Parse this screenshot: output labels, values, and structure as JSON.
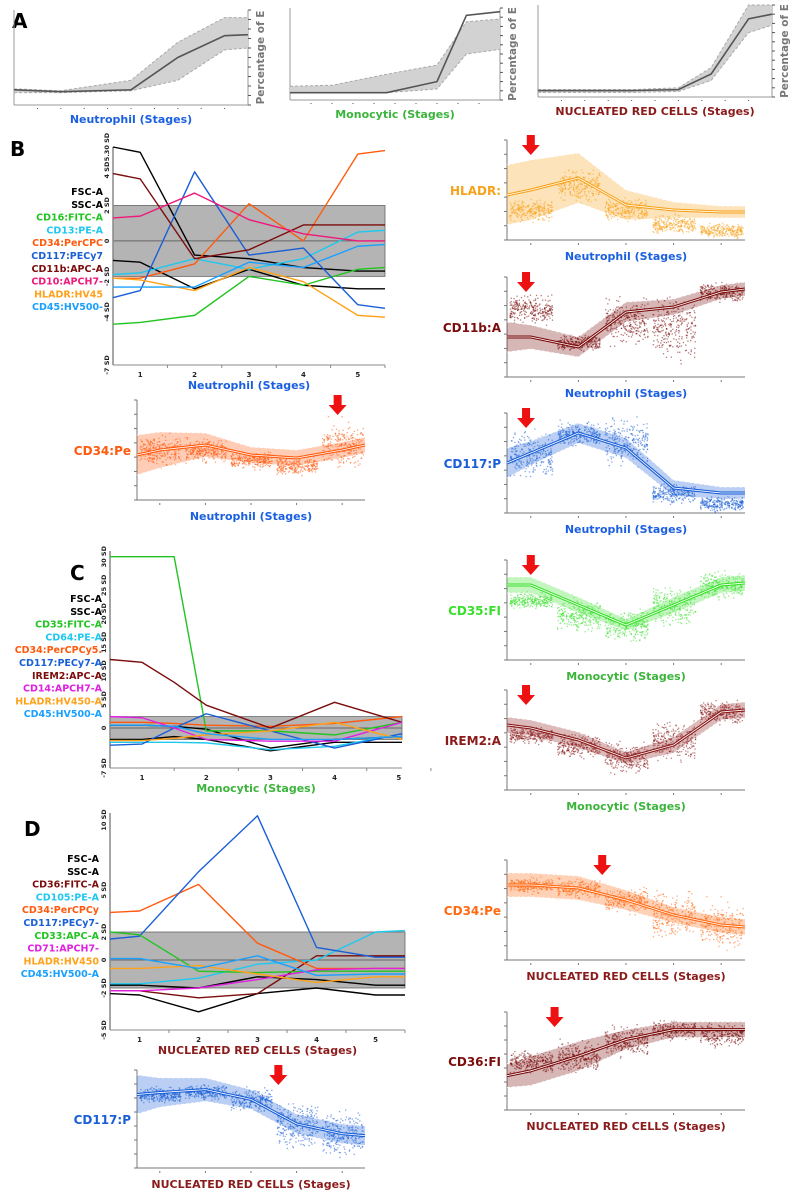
{
  "panel_letters": [
    "A",
    "B",
    "C",
    "D"
  ],
  "chart_data": [
    {
      "id": "A1",
      "type": "area",
      "panel": "A",
      "xlabel": "Neutrophil (Stages)",
      "ylabel": "Percentage of E",
      "xlabel_color": "#1a5fe0",
      "ylim": [
        0,
        100
      ],
      "xlim": [
        0.5,
        5.5
      ],
      "x": [
        0.5,
        1.5,
        3,
        4,
        5,
        5.5
      ],
      "mean": [
        16,
        14,
        16,
        50,
        73,
        74
      ],
      "lower": [
        13,
        13,
        15,
        26,
        58,
        60
      ],
      "upper": [
        17,
        15,
        26,
        66,
        92,
        92
      ]
    },
    {
      "id": "A2",
      "type": "area",
      "panel": "A",
      "xlabel": "Monocytic (Stages)",
      "ylabel": "Percentage of E",
      "xlabel_color": "#3cb43c",
      "ylim": [
        0,
        100
      ],
      "xlim": [
        0.5,
        5.5
      ],
      "x": [
        0.5,
        1.5,
        2.8,
        4,
        4.7,
        5.5
      ],
      "mean": [
        8,
        8,
        8,
        20,
        92,
        96
      ],
      "lower": [
        8,
        8,
        8,
        12,
        50,
        55
      ],
      "upper": [
        15,
        16,
        28,
        38,
        85,
        88
      ]
    },
    {
      "id": "A3",
      "type": "area",
      "panel": "A",
      "xlabel": "NUCLEATED RED CELLS (Stages)",
      "ylabel": "Percentage of E",
      "xlabel_color": "#8b1a1a",
      "ylim": [
        0,
        100
      ],
      "xlim": [
        0.5,
        5.5
      ],
      "x": [
        0.5,
        1.5,
        2.5,
        3.5,
        4.2,
        5,
        5.5
      ],
      "mean": [
        7,
        7,
        7,
        8,
        25,
        85,
        90
      ],
      "lower": [
        5,
        5,
        5,
        6,
        18,
        70,
        78
      ],
      "upper": [
        8,
        8,
        8,
        10,
        32,
        100,
        100
      ]
    },
    {
      "id": "B",
      "type": "line",
      "panel": "B",
      "xlabel": "Neutrophil (Stages)",
      "xlabel_color": "#1a5fe0",
      "ylim": [
        -7,
        5.3
      ],
      "xlim": [
        0.5,
        5.5
      ],
      "band": [
        -2,
        2
      ],
      "yticks": [
        {
          "v": 5.3,
          "label": "5.30 SD"
        },
        {
          "v": 4,
          "label": "4 SD"
        },
        {
          "v": 2,
          "label": "2 SD"
        },
        {
          "v": 0,
          "label": "0"
        },
        {
          "v": -2,
          "label": "-2 SD"
        },
        {
          "v": -4,
          "label": "-4 SD"
        },
        {
          "v": -7,
          "label": "-7 SD"
        }
      ],
      "xticks": [
        "1",
        "2",
        "3",
        "4",
        "5"
      ],
      "x": [
        0.5,
        1,
        2,
        3,
        4,
        5,
        5.5
      ],
      "series": [
        {
          "name": "FSC-A",
          "color": "#000000",
          "y": [
            5.3,
            5.0,
            -0.8,
            -1.0,
            -1.5,
            -1.7,
            -1.7
          ]
        },
        {
          "name": "SSC-A",
          "color": "#000000",
          "y": [
            -1.1,
            -1.2,
            -2.7,
            -1.6,
            -2.5,
            -2.7,
            -2.7
          ]
        },
        {
          "name": "CD16:FITC-A",
          "color": "#22c422",
          "y": [
            -4.7,
            -4.6,
            -4.2,
            -2.0,
            -2.5,
            -1.6,
            -1.5
          ]
        },
        {
          "name": "CD13:PE-A",
          "color": "#1ec8f0",
          "y": [
            -1.9,
            -1.8,
            -1.0,
            -1.6,
            -1.0,
            0.5,
            0.6
          ]
        },
        {
          "name": "CD34:PerCPC",
          "color": "#ff5a0e",
          "y": [
            -2.1,
            -2.1,
            -1.3,
            2.1,
            0.0,
            4.9,
            5.1
          ]
        },
        {
          "name": "CD117:PECy7",
          "color": "#1a5fd6",
          "y": [
            -3.2,
            -2.8,
            3.9,
            -0.8,
            -0.4,
            -3.6,
            -3.8
          ]
        },
        {
          "name": "CD11b:APC-A",
          "color": "#7b0c0c",
          "y": [
            3.8,
            3.5,
            -1.0,
            -0.5,
            0.9,
            0.9,
            0.9
          ]
        },
        {
          "name": "CD10:APCH7-",
          "color": "#f0187a",
          "y": [
            1.3,
            1.4,
            2.7,
            1.2,
            0.4,
            0.0,
            0.0
          ]
        },
        {
          "name": "HLADR:HV45",
          "color": "#ffa21a",
          "y": [
            -2.1,
            -2.2,
            -2.8,
            -1.5,
            -2.3,
            -4.2,
            -4.3
          ]
        },
        {
          "name": "CD45:HV500-",
          "color": "#1aa0ff",
          "y": [
            -2.6,
            -2.6,
            -2.6,
            -1.2,
            -1.5,
            -0.3,
            -0.2
          ]
        }
      ]
    },
    {
      "id": "C",
      "type": "line",
      "panel": "C",
      "xlabel": "Monocytic (Stages)",
      "xlabel_color": "#3cb43c",
      "ylim": [
        -7,
        31
      ],
      "xlim": [
        0.5,
        5.05
      ],
      "band": [
        -2,
        2
      ],
      "yticks": [
        {
          "v": 30,
          "label": "30 SD"
        },
        {
          "v": 25,
          "label": "25 SD"
        },
        {
          "v": 20,
          "label": "20 SD"
        },
        {
          "v": 15,
          "label": "15 SD"
        },
        {
          "v": 10,
          "label": "10 SD"
        },
        {
          "v": 5,
          "label": "5 SD"
        },
        {
          "v": 0,
          "label": "0"
        },
        {
          "v": -7,
          "label": "-7 SD"
        }
      ],
      "xticks": [
        "1",
        "2",
        "3",
        "4",
        "5"
      ],
      "x": [
        0.5,
        1,
        1.5,
        2,
        3,
        4,
        5.05
      ],
      "series": [
        {
          "name": "FSC-A",
          "color": "#000000",
          "y": [
            -2,
            -2,
            -1.5,
            -2,
            -4,
            -2.5,
            -2.5
          ]
        },
        {
          "name": "SSC-A",
          "color": "#000000",
          "y": [
            0.5,
            0.5,
            0.3,
            -0.2,
            -3.5,
            -2,
            -1.5
          ]
        },
        {
          "name": "CD35:FITC-A",
          "color": "#22c422",
          "y": [
            30,
            30,
            30,
            -0.5,
            -0.5,
            -1.2,
            1.0
          ]
        },
        {
          "name": "CD64:PE-A",
          "color": "#1ec8f0",
          "y": [
            -2.5,
            -2.5,
            -2.5,
            -2.6,
            -3.8,
            -3.2,
            -1.0
          ]
        },
        {
          "name": "CD34:PerCPCy5.",
          "color": "#ff5a0e",
          "y": [
            1.0,
            1.0,
            0.8,
            0.5,
            0.3,
            0.8,
            2.0
          ]
        },
        {
          "name": "CD117:PECy7-A",
          "color": "#1a5fd6",
          "y": [
            -3.0,
            -2.8,
            0.0,
            2.5,
            -0.5,
            -3.5,
            -1.0
          ]
        },
        {
          "name": "IREM2:APC-A",
          "color": "#7b0c0c",
          "y": [
            12,
            11.5,
            8,
            4,
            0,
            4.5,
            1.0
          ]
        },
        {
          "name": "CD14:APCH7-A",
          "color": "#e020e0",
          "y": [
            2,
            1.8,
            0,
            -2,
            -2.3,
            -2.3,
            1.0
          ]
        },
        {
          "name": "HLADR:HV450-A",
          "color": "#ffa21a",
          "y": [
            -2.2,
            -2.2,
            -1.8,
            -1.2,
            -0.5,
            1.0,
            -2.0
          ]
        },
        {
          "name": "CD45:HV500-A",
          "color": "#1aa0ff",
          "y": [
            0.5,
            0.5,
            0.3,
            -1.0,
            -2.0,
            -2.0,
            -1.5
          ]
        }
      ]
    },
    {
      "id": "D",
      "type": "line",
      "panel": "D",
      "xlabel": "NUCLEATED RED CELLS (Stages)",
      "xlabel_color": "#8b1a1a",
      "ylim": [
        -5,
        10.5
      ],
      "xlim": [
        0.5,
        5.5
      ],
      "band": [
        -2,
        2
      ],
      "yticks": [
        {
          "v": 10,
          "label": "10 SD"
        },
        {
          "v": 5,
          "label": "5 SD"
        },
        {
          "v": 2,
          "label": "2 SD"
        },
        {
          "v": 0,
          "label": "0"
        },
        {
          "v": -2,
          "label": "-2 SD"
        },
        {
          "v": -5,
          "label": "-5 SD"
        }
      ],
      "xticks": [
        "1",
        "2",
        "3",
        "4",
        "5"
      ],
      "x": [
        0.5,
        1,
        2,
        3,
        4,
        5,
        5.5
      ],
      "series": [
        {
          "name": "FSC-A",
          "color": "#000000",
          "y": [
            -2.4,
            -2.5,
            -3.7,
            -2.4,
            -2.0,
            -2.5,
            -2.5
          ]
        },
        {
          "name": "SSC-A",
          "color": "#000000",
          "y": [
            -1.8,
            -1.8,
            -2.0,
            -1.2,
            -1.4,
            -1.8,
            -1.8
          ]
        },
        {
          "name": "CD36:FITC-A",
          "color": "#7b0c0c",
          "y": [
            -2.2,
            -2.2,
            -2.7,
            -2.4,
            0.3,
            0.3,
            0.3
          ]
        },
        {
          "name": "CD105:PE-A",
          "color": "#1ec8f0",
          "y": [
            -1.7,
            -1.7,
            -1.3,
            -0.3,
            0.0,
            2.0,
            2.1
          ]
        },
        {
          "name": "CD34:PerCPCy",
          "color": "#ff5a0e",
          "y": [
            3.4,
            3.5,
            5.4,
            1.2,
            -0.6,
            -0.6,
            -0.6
          ]
        },
        {
          "name": "CD117:PECy7-",
          "color": "#1a5fd6",
          "y": [
            1.5,
            1.7,
            6.3,
            10.3,
            0.9,
            0.2,
            0.2
          ]
        },
        {
          "name": "CD33:APC-A",
          "color": "#22c422",
          "y": [
            2.0,
            1.8,
            -0.8,
            -0.9,
            -0.8,
            -0.8,
            -0.8
          ]
        },
        {
          "name": "CD71:APCH7-",
          "color": "#e020e0",
          "y": [
            -2.2,
            -2.2,
            -2.0,
            -1.4,
            -0.7,
            -0.6,
            -0.6
          ]
        },
        {
          "name": "HLADR:HV450",
          "color": "#ffa21a",
          "y": [
            -0.6,
            -0.6,
            -0.4,
            -1.0,
            -1.6,
            -1.2,
            -1.2
          ]
        },
        {
          "name": "CD45:HV500-A",
          "color": "#1aa0ff",
          "y": [
            0.1,
            0.1,
            -0.6,
            0.3,
            -1.1,
            -1.0,
            -1.0
          ]
        }
      ]
    },
    {
      "id": "S1",
      "type": "scatter",
      "panel": "B",
      "label": "HLADR:",
      "color": "#f7a21b",
      "xlabel": "Neutrophil (Stages)",
      "xlabel_color": "#1a5fe0",
      "arrow_stage": 1,
      "curve_x": [
        0.5,
        1,
        2,
        3,
        4,
        5,
        5.5
      ],
      "mean": [
        0.45,
        0.5,
        0.62,
        0.35,
        0.3,
        0.28,
        0.28
      ],
      "band": [
        0.3,
        0.3,
        0.25,
        0.15,
        0.08,
        0.06,
        0.06
      ],
      "clusters": [
        [
          0.3,
          0.14
        ],
        [
          0.55,
          0.2
        ],
        [
          0.3,
          0.15
        ],
        [
          0.16,
          0.12
        ],
        [
          0.1,
          0.1
        ]
      ]
    },
    {
      "id": "S2",
      "type": "scatter",
      "panel": "B",
      "label": "CD11b:A",
      "color": "#7b0c0c",
      "xlabel": "Neutrophil (Stages)",
      "xlabel_color": "#1a5fe0",
      "arrow_stage": 0.9,
      "curve_x": [
        0.5,
        1,
        2,
        3,
        4,
        5,
        5.5
      ],
      "mean": [
        0.4,
        0.4,
        0.3,
        0.65,
        0.7,
        0.85,
        0.88
      ],
      "band": [
        0.15,
        0.12,
        0.1,
        0.1,
        0.08,
        0.07,
        0.07
      ],
      "clusters": [
        [
          0.68,
          0.18
        ],
        [
          0.35,
          0.1
        ],
        [
          0.55,
          0.3
        ],
        [
          0.5,
          0.42
        ],
        [
          0.85,
          0.12
        ]
      ]
    },
    {
      "id": "S3",
      "type": "scatter",
      "panel": "B",
      "label": "CD34:Pe",
      "color": "#ff5a0e",
      "xlabel": "Neutrophil (Stages)",
      "xlabel_color": "#1a5fe0",
      "arrow_stage": 4.9,
      "curve_x": [
        0.5,
        1,
        2,
        3,
        4,
        5,
        5.5
      ],
      "mean": [
        0.45,
        0.5,
        0.55,
        0.45,
        0.42,
        0.5,
        0.55
      ],
      "band": [
        0.2,
        0.18,
        0.12,
        0.08,
        0.08,
        0.08,
        0.08
      ],
      "clusters": [
        [
          0.5,
          0.2
        ],
        [
          0.5,
          0.15
        ],
        [
          0.4,
          0.1
        ],
        [
          0.35,
          0.12
        ],
        [
          0.55,
          0.3
        ]
      ]
    },
    {
      "id": "S4",
      "type": "scatter",
      "panel": "B",
      "label": "CD117:P",
      "color": "#1a5fd6",
      "xlabel": "Neutrophil (Stages)",
      "xlabel_color": "#1a5fe0",
      "arrow_stage": 0.9,
      "curve_x": [
        0.5,
        1,
        2,
        3,
        4,
        5,
        5.5
      ],
      "mean": [
        0.5,
        0.6,
        0.8,
        0.65,
        0.25,
        0.2,
        0.2
      ],
      "band": [
        0.15,
        0.12,
        0.1,
        0.1,
        0.08,
        0.06,
        0.06
      ],
      "clusters": [
        [
          0.6,
          0.3
        ],
        [
          0.8,
          0.15
        ],
        [
          0.7,
          0.3
        ],
        [
          0.2,
          0.12
        ],
        [
          0.1,
          0.1
        ]
      ]
    },
    {
      "id": "S5",
      "type": "scatter",
      "panel": "C",
      "label": "CD35:FI",
      "color": "#39e02b",
      "xlabel": "Monocytic (Stages)",
      "xlabel_color": "#3cb43c",
      "arrow_stage": 1,
      "curve_x": [
        0.5,
        1,
        2,
        3,
        4,
        5,
        5.5
      ],
      "mean": [
        0.75,
        0.75,
        0.55,
        0.35,
        0.55,
        0.75,
        0.77
      ],
      "band": [
        0.08,
        0.08,
        0.08,
        0.06,
        0.08,
        0.08,
        0.08
      ],
      "clusters": [
        [
          0.6,
          0.1
        ],
        [
          0.45,
          0.2
        ],
        [
          0.35,
          0.2
        ],
        [
          0.55,
          0.25
        ],
        [
          0.75,
          0.18
        ]
      ]
    },
    {
      "id": "S6",
      "type": "scatter",
      "panel": "C",
      "label": "IREM2:A",
      "color": "#8b1a1a",
      "xlabel": "Monocytic (Stages)",
      "xlabel_color": "#3cb43c",
      "arrow_stage": 0.9,
      "curve_x": [
        0.5,
        1,
        2,
        3,
        4,
        5,
        5.5
      ],
      "mean": [
        0.65,
        0.62,
        0.5,
        0.32,
        0.45,
        0.78,
        0.8
      ],
      "band": [
        0.08,
        0.08,
        0.08,
        0.06,
        0.08,
        0.08,
        0.08
      ],
      "clusters": [
        [
          0.55,
          0.1
        ],
        [
          0.45,
          0.15
        ],
        [
          0.32,
          0.2
        ],
        [
          0.5,
          0.25
        ],
        [
          0.78,
          0.15
        ]
      ]
    },
    {
      "id": "S7",
      "type": "scatter",
      "panel": "D",
      "label": "CD34:Pe",
      "color": "#ff6a13",
      "xlabel": "NUCLEATED RED CELLS (Stages)",
      "xlabel_color": "#8b1a1a",
      "arrow_stage": 2.5,
      "curve_x": [
        0.5,
        1,
        2,
        3,
        4,
        5,
        5.5
      ],
      "mean": [
        0.75,
        0.75,
        0.72,
        0.6,
        0.45,
        0.35,
        0.33
      ],
      "band": [
        0.12,
        0.12,
        0.12,
        0.1,
        0.08,
        0.08,
        0.08
      ],
      "clusters": [
        [
          0.75,
          0.1
        ],
        [
          0.72,
          0.12
        ],
        [
          0.6,
          0.15
        ],
        [
          0.45,
          0.3
        ],
        [
          0.35,
          0.3
        ]
      ]
    },
    {
      "id": "S8",
      "type": "scatter",
      "panel": "D",
      "label": "CD36:FI",
      "color": "#7b0c0c",
      "xlabel": "NUCLEATED RED CELLS (Stages)",
      "xlabel_color": "#8b1a1a",
      "arrow_stage": 1.5,
      "curve_x": [
        0.5,
        1,
        2,
        3,
        4,
        5,
        5.5
      ],
      "mean": [
        0.35,
        0.4,
        0.55,
        0.72,
        0.82,
        0.82,
        0.82
      ],
      "band": [
        0.12,
        0.15,
        0.15,
        0.1,
        0.08,
        0.08,
        0.08
      ],
      "clusters": [
        [
          0.5,
          0.15
        ],
        [
          0.55,
          0.2
        ],
        [
          0.7,
          0.2
        ],
        [
          0.82,
          0.12
        ],
        [
          0.78,
          0.15
        ]
      ]
    },
    {
      "id": "S9",
      "type": "scatter",
      "panel": "D",
      "label": "CD117:P",
      "color": "#1a5fd6",
      "xlabel": "NUCLEATED RED CELLS (Stages)",
      "xlabel_color": "#8b1a1a",
      "arrow_stage": 3.6,
      "curve_x": [
        0.5,
        1,
        2,
        3,
        4,
        5,
        5.5
      ],
      "mean": [
        0.75,
        0.77,
        0.8,
        0.7,
        0.45,
        0.35,
        0.33
      ],
      "band": [
        0.2,
        0.15,
        0.12,
        0.1,
        0.1,
        0.1,
        0.1
      ],
      "clusters": [
        [
          0.75,
          0.1
        ],
        [
          0.78,
          0.1
        ],
        [
          0.7,
          0.15
        ],
        [
          0.45,
          0.3
        ],
        [
          0.35,
          0.3
        ]
      ]
    }
  ],
  "colors": {
    "band_gray": "#b4b4b4",
    "arrow": "#ee1111"
  }
}
